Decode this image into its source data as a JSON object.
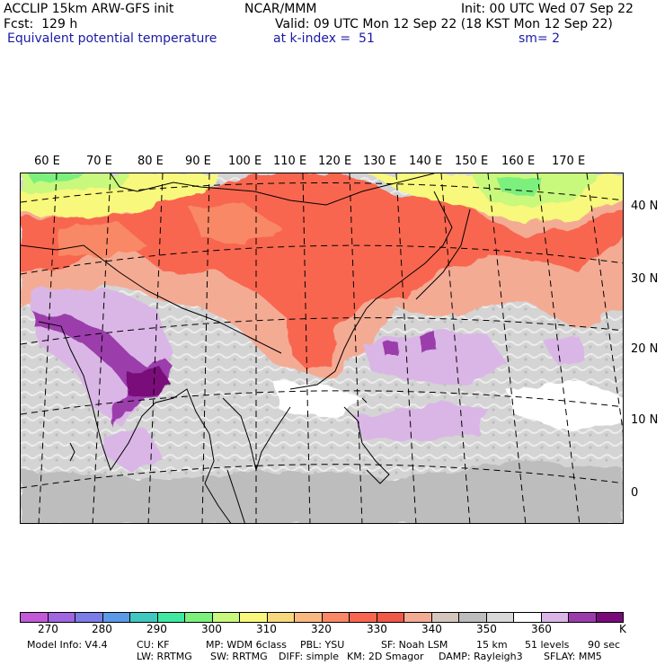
{
  "header": {
    "model": "ACCLIP 15km ARW-GFS init",
    "center": "NCAR/MMM",
    "init": "Init: 00 UTC Wed 07 Sep 22",
    "fcst": "Fcst:  129 h",
    "valid": "Valid: 09 UTC Mon 12 Sep 22 (18 KST Mon 12 Sep 22)",
    "field": "Equivalent potential temperature",
    "level": "at k-index =  51",
    "smoothing": "sm= 2"
  },
  "lon_labels": [
    "60 E",
    "70 E",
    "80 E",
    "90 E",
    "100 E",
    "110 E",
    "120 E",
    "130 E",
    "140 E",
    "150 E",
    "160 E",
    "170 E"
  ],
  "lat_labels": [
    "40 N",
    "30 N",
    "20 N",
    "10 N",
    "0"
  ],
  "colorbar": {
    "colors": [
      "#c25ad8",
      "#a066e0",
      "#7c7ce6",
      "#5a9ae6",
      "#3ec8c0",
      "#3ee8a0",
      "#7cf07c",
      "#c8f87c",
      "#f8f87c",
      "#f8d87c",
      "#f8b880",
      "#f88866",
      "#f86650",
      "#f05848",
      "#f4ab94",
      "#d4c6bc",
      "#bdbdbd",
      "#d8d8d8",
      "#ffffff",
      "#dab6e6",
      "#9c3cac",
      "#7a0a7a"
    ],
    "labels": [
      "270",
      "280",
      "290",
      "300",
      "310",
      "320",
      "330",
      "340",
      "350",
      "360"
    ],
    "unit": "K"
  },
  "footer": {
    "line1": [
      "Model Info: V4.4",
      "CU: KF",
      "MP: WDM 6class",
      "PBL: YSU",
      "SF: Noah LSM",
      "15 km",
      "51 levels",
      "90 sec"
    ],
    "line2": [
      "LW: RRTMG",
      "SW: RRTMG",
      "DIFF: simple",
      "KM: 2D Smagor",
      "DAMP: Rayleigh3",
      "SFLAY: MM5"
    ]
  }
}
